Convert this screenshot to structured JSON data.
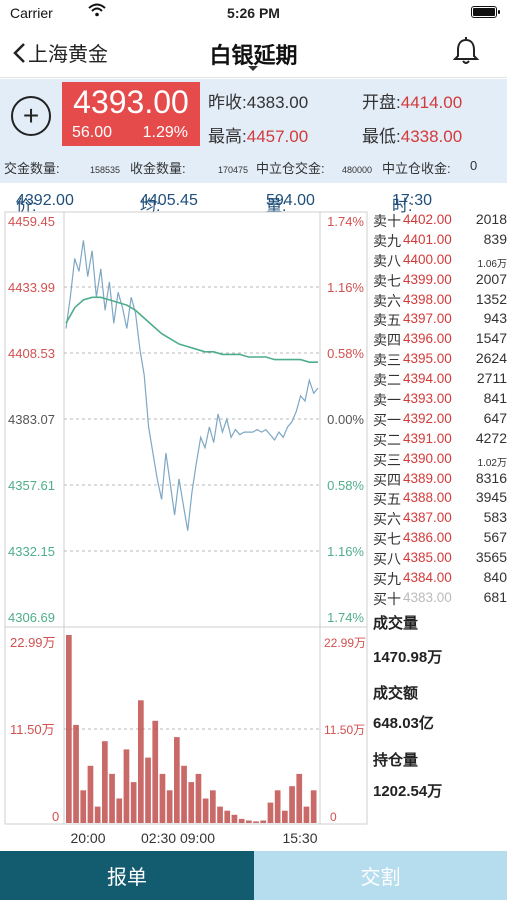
{
  "status_bar": {
    "carrier": "Carrier",
    "time": "5:26 PM"
  },
  "nav": {
    "back_label": "上海黄金",
    "title": "白银延期"
  },
  "quote": {
    "price": "4393.00",
    "change": "56.00",
    "change_pct": "1.29%",
    "prev_close_label": "昨收:",
    "prev_close": "4383.00",
    "open_label": "开盘:",
    "open": "4414.00",
    "high_label": "最高:",
    "high": "4457.00",
    "low_label": "最低:",
    "low": "4338.00",
    "deliver_qty_label": "交金数量:",
    "deliver_qty": "158535",
    "receive_qty_label": "收金数量:",
    "receive_qty": "170475",
    "neutral_deliver_label": "中立仓交金:",
    "neutral_deliver": "480000",
    "neutral_receive_label": "中立仓收金:",
    "neutral_receive": "0"
  },
  "info_bar": {
    "price_label": "价:",
    "price": "4392.00",
    "avg_label": "均:",
    "avg": "4405.45",
    "vol_label": "量:",
    "vol": "594.00",
    "time_label": "时:",
    "time": "17:30"
  },
  "chart_data": {
    "type": "line",
    "price_ticks_left": [
      "4459.45",
      "4433.99",
      "4408.53",
      "4383.07",
      "4357.61",
      "4332.15",
      "4306.69"
    ],
    "pct_ticks_right": [
      "1.74%",
      "1.16%",
      "0.58%",
      "0.00%",
      "0.58%",
      "1.16%",
      "1.74%"
    ],
    "ylim": [
      4306.69,
      4459.45
    ],
    "x_ticks": [
      "20:00",
      "02:30 09:00",
      "15:30"
    ],
    "volume_ticks_left": [
      "22.99万",
      "11.50万",
      "0"
    ],
    "volume_ticks_right": [
      "22.99万",
      "11.50万",
      "0"
    ],
    "volume_ylim": [
      0,
      229900
    ],
    "series": [
      {
        "kind": "price",
        "color": "#7ea7c4",
        "values": [
          4418,
          4430,
          4445,
          4440,
          4452,
          4438,
          4448,
          4430,
          4441,
          4425,
          4436,
          4420,
          4432,
          4426,
          4418,
          4430,
          4424,
          4410,
          4400,
          4380,
          4370,
          4360,
          4352,
          4370,
          4358,
          4346,
          4360,
          4350,
          4340,
          4355,
          4366,
          4376,
          4372,
          4380,
          4374,
          4385,
          4378,
          4383,
          4376,
          4379,
          4377,
          4378,
          4378,
          4378,
          4379,
          4378,
          4379,
          4377,
          4375,
          4378,
          4376,
          4380,
          4382,
          4386,
          4392,
          4390,
          4398,
          4393,
          4395
        ]
      },
      {
        "kind": "avg",
        "color": "#4fae8a",
        "values": [
          4420,
          4426,
          4429,
          4430,
          4430,
          4429,
          4428,
          4427,
          4425,
          4422,
          4419,
          4416,
          4414,
          4412,
          4411,
          4410,
          4409,
          4409,
          4408,
          4408,
          4408,
          4407,
          4407,
          4407,
          4406,
          4406,
          4406,
          4406,
          4405,
          4405
        ]
      }
    ],
    "volume": [
      229900,
      120000,
      40000,
      70000,
      20000,
      100000,
      60000,
      30000,
      90000,
      50000,
      150000,
      80000,
      125000,
      60000,
      40000,
      105000,
      70000,
      50000,
      60000,
      30000,
      40000,
      20000,
      15000,
      10000,
      5000,
      3000,
      2000,
      3000,
      25000,
      40000,
      15000,
      45000,
      60000,
      20000,
      40000
    ]
  },
  "orderbook": {
    "rows": [
      {
        "label": "卖十",
        "price": "4402.00",
        "vol": "2018"
      },
      {
        "label": "卖九",
        "price": "4401.00",
        "vol": "839"
      },
      {
        "label": "卖八",
        "price": "4400.00",
        "vol": "1.06万"
      },
      {
        "label": "卖七",
        "price": "4399.00",
        "vol": "2007"
      },
      {
        "label": "卖六",
        "price": "4398.00",
        "vol": "1352"
      },
      {
        "label": "卖五",
        "price": "4397.00",
        "vol": "943"
      },
      {
        "label": "卖四",
        "price": "4396.00",
        "vol": "1547"
      },
      {
        "label": "卖三",
        "price": "4395.00",
        "vol": "2624"
      },
      {
        "label": "卖二",
        "price": "4394.00",
        "vol": "2711"
      },
      {
        "label": "卖一",
        "price": "4393.00",
        "vol": "841"
      },
      {
        "label": "买一",
        "price": "4392.00",
        "vol": "647"
      },
      {
        "label": "买二",
        "price": "4391.00",
        "vol": "4272"
      },
      {
        "label": "买三",
        "price": "4390.00",
        "vol": "1.02万"
      },
      {
        "label": "买四",
        "price": "4389.00",
        "vol": "8316"
      },
      {
        "label": "买五",
        "price": "4388.00",
        "vol": "3945"
      },
      {
        "label": "买六",
        "price": "4387.00",
        "vol": "583"
      },
      {
        "label": "买七",
        "price": "4386.00",
        "vol": "567"
      },
      {
        "label": "买八",
        "price": "4385.00",
        "vol": "3565"
      },
      {
        "label": "买九",
        "price": "4384.00",
        "vol": "840"
      },
      {
        "label": "买十",
        "price": "4383.00",
        "vol": "681"
      }
    ]
  },
  "stats": {
    "volume_label": "成交量",
    "volume": "1470.98万",
    "amount_label": "成交额",
    "amount": "648.03亿",
    "oi_label": "持仓量",
    "oi": "1202.54万"
  },
  "bottom": {
    "order_label": "报单",
    "deliver_label": "交割"
  },
  "colors": {
    "up": "#d33a3a",
    "down": "#4fae8a",
    "accent": "#135b6e",
    "price_box": "#e64b4b"
  }
}
